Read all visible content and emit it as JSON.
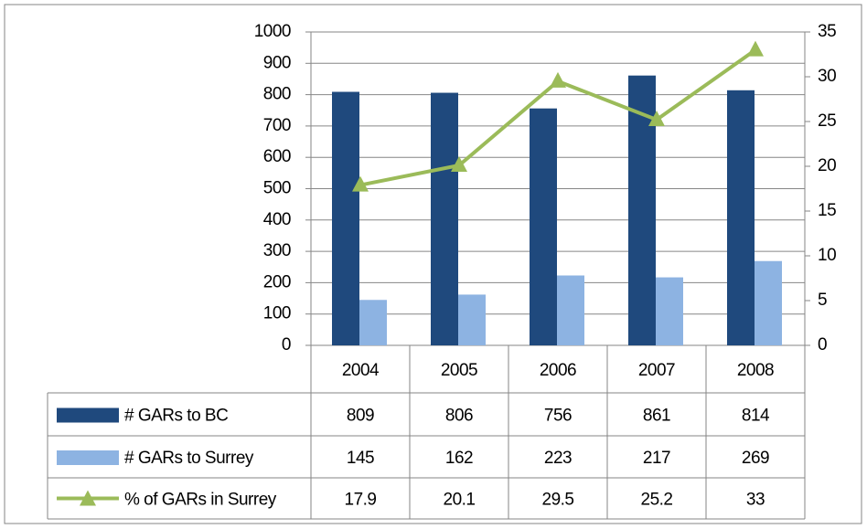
{
  "chart_data": {
    "type": "bar",
    "categories": [
      "2004",
      "2005",
      "2006",
      "2007",
      "2008"
    ],
    "series": [
      {
        "name": "# GARs to BC",
        "color": "#1f497d",
        "values": [
          809,
          806,
          756,
          861,
          814
        ]
      },
      {
        "name": "# GARs to Surrey",
        "color": "#8db3e2",
        "values": [
          145,
          162,
          223,
          217,
          269
        ]
      },
      {
        "name": "% of GARs in Surrey",
        "color": "#9bbb59",
        "values": [
          17.9,
          20.1,
          29.5,
          25.2,
          33
        ],
        "axis": "y2",
        "type": "line"
      }
    ],
    "ylim": [
      0,
      1000
    ],
    "yticks": [
      0,
      100,
      200,
      300,
      400,
      500,
      600,
      700,
      800,
      900,
      1000
    ],
    "y2lim": [
      0,
      35
    ],
    "y2ticks": [
      0,
      5,
      10,
      15,
      20,
      25,
      30,
      35
    ],
    "grid": true,
    "data_table": true
  }
}
